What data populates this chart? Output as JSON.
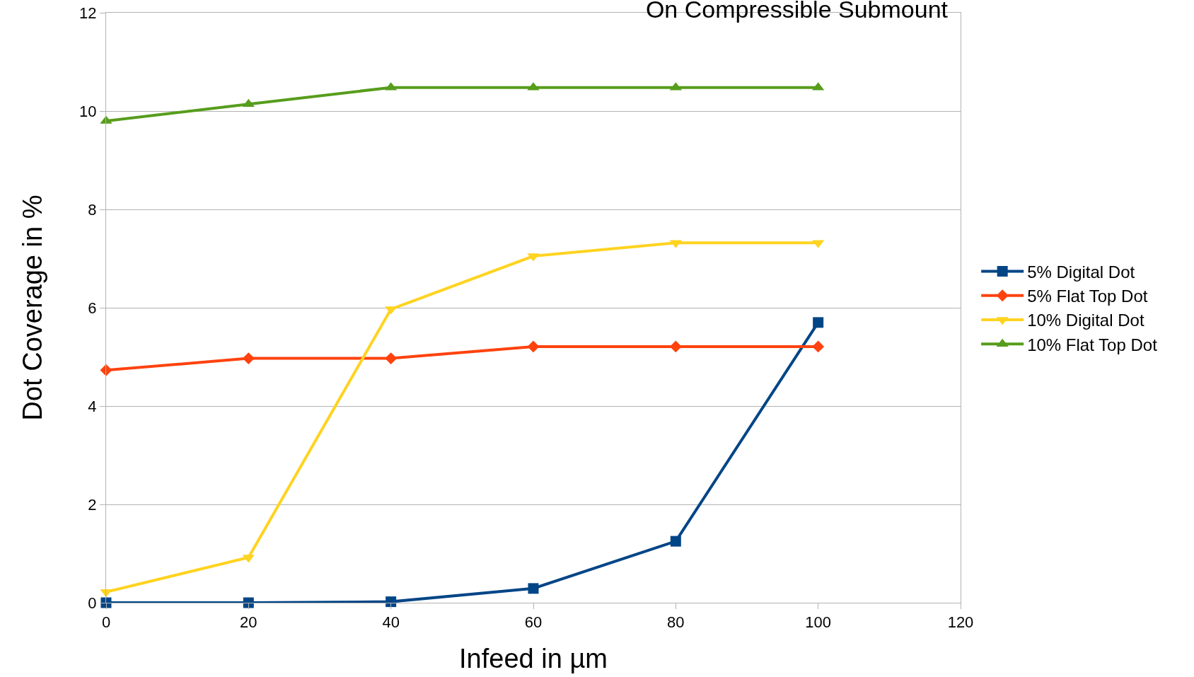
{
  "chart_data": {
    "type": "line",
    "title": "On Compressible Submount",
    "xlabel": "Infeed in µm",
    "ylabel": "Dot Coverage in %",
    "x": [
      0,
      20,
      40,
      60,
      80,
      100
    ],
    "series": [
      {
        "name": "5% Digital Dot",
        "color": "#004586",
        "marker": "square",
        "values": [
          0,
          0,
          0.02,
          0.29,
          1.25,
          5.7
        ]
      },
      {
        "name": "5% Flat Top Dot",
        "color": "#ff420e",
        "marker": "diamond",
        "values": [
          4.73,
          4.97,
          4.97,
          5.21,
          5.21,
          5.21
        ]
      },
      {
        "name": "10% Digital Dot",
        "color": "#ffd320",
        "marker": "triangle-down",
        "values": [
          0.22,
          0.92,
          5.97,
          7.05,
          7.32,
          7.32
        ]
      },
      {
        "name": "10% Flat Top Dot",
        "color": "#579d1c",
        "marker": "triangle",
        "values": [
          9.8,
          10.14,
          10.48,
          10.48,
          10.48,
          10.48
        ]
      }
    ],
    "xlim": [
      0,
      120
    ],
    "xticks": [
      0,
      20,
      40,
      60,
      80,
      100,
      120
    ],
    "ylim": [
      0,
      12
    ],
    "yticks": [
      0,
      2,
      4,
      6,
      8,
      10,
      12
    ],
    "grid": "y",
    "legend": "right",
    "line_style": "solid"
  }
}
